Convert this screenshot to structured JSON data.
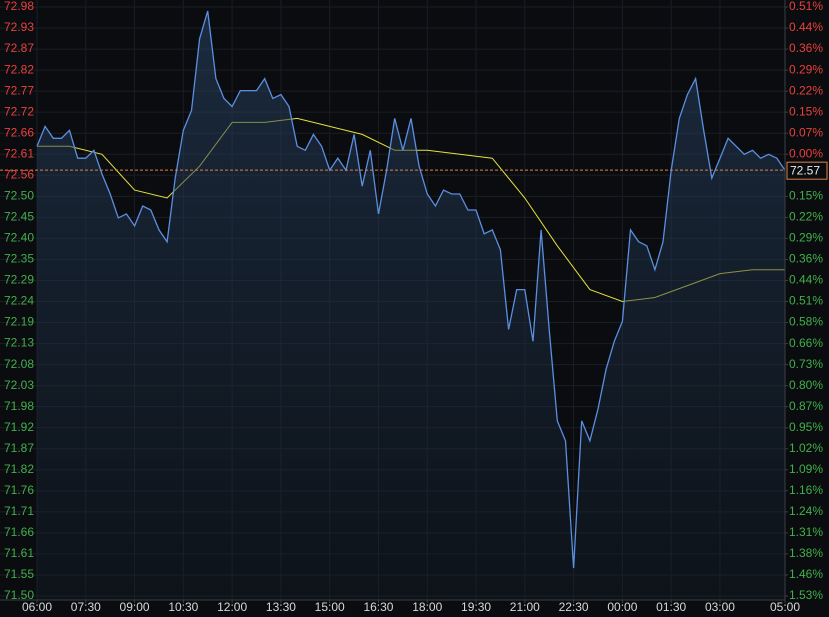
{
  "chart_data": {
    "type": "line",
    "xlim": [
      0,
      23
    ],
    "xticks": [
      {
        "value": 0,
        "label": "06:00"
      },
      {
        "value": 1.5,
        "label": "07:30"
      },
      {
        "value": 3,
        "label": "09:00"
      },
      {
        "value": 4.5,
        "label": "10:30"
      },
      {
        "value": 6,
        "label": "12:00"
      },
      {
        "value": 7.5,
        "label": "13:30"
      },
      {
        "value": 9,
        "label": "15:00"
      },
      {
        "value": 10.5,
        "label": "16:30"
      },
      {
        "value": 12,
        "label": "18:00"
      },
      {
        "value": 13.5,
        "label": "19:30"
      },
      {
        "value": 15,
        "label": "21:00"
      },
      {
        "value": 16.5,
        "label": "22:30"
      },
      {
        "value": 18,
        "label": "00:00"
      },
      {
        "value": 19.5,
        "label": "01:30"
      },
      {
        "value": 21,
        "label": "03:00"
      },
      {
        "value": 23,
        "label": "05:00"
      }
    ],
    "ylim": [
      71.5,
      72.98
    ],
    "yticks": [
      72.98,
      {
        "value": 72.9271,
        "label": "72.93"
      },
      {
        "value": 72.8743,
        "label": "72.87"
      },
      {
        "value": 72.8214,
        "label": "72.82"
      },
      {
        "value": 72.7686,
        "label": "72.77"
      },
      {
        "value": 72.7157,
        "label": "72.72"
      },
      {
        "value": 72.6629,
        "label": "72.66"
      },
      72.61,
      {
        "value": 72.5571,
        "label": "72.56"
      },
      {
        "value": 72.5043,
        "label": "72.50"
      },
      {
        "value": 72.4514,
        "label": "72.45"
      },
      {
        "value": 72.3986,
        "label": "72.40"
      },
      {
        "value": 72.3457,
        "label": "72.35"
      },
      {
        "value": 72.2929,
        "label": "72.29"
      },
      72.24,
      {
        "value": 72.1871,
        "label": "72.19"
      },
      {
        "value": 72.1343,
        "label": "72.13"
      },
      {
        "value": 72.0814,
        "label": "72.08"
      },
      {
        "value": 72.0286,
        "label": "72.03"
      },
      {
        "value": 71.9757,
        "label": "71.98"
      },
      {
        "value": 71.9229,
        "label": "71.92"
      },
      71.87,
      {
        "value": 71.8171,
        "label": "71.82"
      },
      {
        "value": 71.7643,
        "label": "71.76"
      },
      {
        "value": 71.7114,
        "label": "71.71"
      },
      {
        "value": 71.6586,
        "label": "71.66"
      },
      {
        "value": 71.6057,
        "label": "71.61"
      },
      {
        "value": 71.5529,
        "label": "71.55"
      },
      {
        "value": 71.5,
        "label": "71.50"
      }
    ],
    "ytick_colors": [
      "#e8413c",
      "#e8413c",
      "#e8413c",
      "#e8413c",
      "#e8413c",
      "#e8413c",
      "#e8413c",
      "#e8413c",
      "#e8413c",
      "#41b04a",
      "#41b04a",
      "#41b04a",
      "#41b04a",
      "#41b04a",
      "#41b04a",
      "#41b04a",
      "#41b04a",
      "#41b04a",
      "#41b04a",
      "#41b04a",
      "#41b04a",
      "#41b04a",
      "#41b04a",
      "#41b04a",
      "#41b04a",
      "#41b04a",
      "#41b04a",
      "#41b04a",
      "#41b04a"
    ],
    "y2lim": [
      -1.5287,
      0.5096
    ],
    "y2ticks": [
      {
        "value": 0.5096,
        "label": "0.51%"
      },
      {
        "value": 0.4368,
        "label": "0.44%"
      },
      {
        "value": 0.364,
        "label": "0.36%"
      },
      {
        "value": 0.2912,
        "label": "0.29%"
      },
      {
        "value": 0.2184,
        "label": "0.22%"
      },
      {
        "value": 0.1456,
        "label": "0.15%"
      },
      {
        "value": 0.0728,
        "label": "0.07%"
      },
      {
        "value": 0,
        "label": "0.00%"
      },
      {
        "value": -0.1456,
        "label": "0.15%"
      },
      {
        "value": -0.2184,
        "label": "0.22%"
      },
      {
        "value": -0.2912,
        "label": "0.29%"
      },
      {
        "value": -0.364,
        "label": "0.36%"
      },
      {
        "value": -0.4368,
        "label": "0.44%"
      },
      {
        "value": -0.5096,
        "label": "0.51%"
      },
      {
        "value": -0.5824,
        "label": "0.58%"
      },
      {
        "value": -0.6552,
        "label": "0.66%"
      },
      {
        "value": -0.728,
        "label": "0.73%"
      },
      {
        "value": -0.8008,
        "label": "0.80%"
      },
      {
        "value": -0.8736,
        "label": "0.87%"
      },
      {
        "value": -0.9464,
        "label": "0.95%"
      },
      {
        "value": -1.0192,
        "label": "1.02%"
      },
      {
        "value": -1.0919,
        "label": "1.09%"
      },
      {
        "value": -1.1647,
        "label": "1.16%"
      },
      {
        "value": -1.2375,
        "label": "1.24%"
      },
      {
        "value": -1.3103,
        "label": "1.31%"
      },
      {
        "value": -1.3831,
        "label": "1.38%"
      },
      {
        "value": -1.4559,
        "label": "1.46%"
      },
      {
        "value": -1.5287,
        "label": "1.53%"
      }
    ],
    "up_color": "#e8413c",
    "down_color": "#41b04a",
    "grid": true,
    "reference": {
      "value": 72.57,
      "color": "#d9834f"
    },
    "series": [
      {
        "color": "#5b8fe0",
        "fill": true,
        "x": [
          0,
          0.25,
          0.5,
          0.75,
          1,
          1.25,
          1.5,
          1.75,
          2,
          2.25,
          2.5,
          2.75,
          3,
          3.25,
          3.5,
          3.75,
          4,
          4.25,
          4.5,
          4.75,
          5,
          5.25,
          5.5,
          5.75,
          6,
          6.25,
          6.5,
          6.75,
          7,
          7.25,
          7.5,
          7.75,
          8,
          8.25,
          8.5,
          8.75,
          9,
          9.25,
          9.5,
          9.75,
          10,
          10.25,
          10.5,
          10.75,
          11,
          11.25,
          11.5,
          11.75,
          12,
          12.25,
          12.5,
          12.75,
          13,
          13.25,
          13.5,
          13.75,
          14,
          14.25,
          14.5,
          14.75,
          15,
          15.25,
          15.5,
          15.75,
          16,
          16.25,
          16.5,
          16.75,
          17,
          17.25,
          17.5,
          17.75,
          18,
          18.25,
          18.5,
          18.75,
          19,
          19.25,
          19.5,
          19.75,
          20,
          20.25,
          20.5,
          20.75,
          21,
          21.25,
          21.5,
          21.75,
          22,
          22.25,
          22.5,
          22.75,
          23
        ],
        "values": [
          72.63,
          72.68,
          72.65,
          72.65,
          72.67,
          72.6,
          72.6,
          72.62,
          72.56,
          72.51,
          72.45,
          72.46,
          72.43,
          72.48,
          72.47,
          72.42,
          72.39,
          72.55,
          72.67,
          72.72,
          72.9,
          72.97,
          72.8,
          72.75,
          72.73,
          72.77,
          72.77,
          72.77,
          72.8,
          72.75,
          72.76,
          72.73,
          72.63,
          72.62,
          72.66,
          72.63,
          72.57,
          72.6,
          72.57,
          72.66,
          72.53,
          72.62,
          72.46,
          72.57,
          72.7,
          72.62,
          72.7,
          72.58,
          72.51,
          72.48,
          72.52,
          72.51,
          72.51,
          72.47,
          72.47,
          72.41,
          72.42,
          72.37,
          72.17,
          72.27,
          72.27,
          72.14,
          72.42,
          72.17,
          71.94,
          71.89,
          71.57,
          71.94,
          71.89,
          71.97,
          72.07,
          72.14,
          72.19,
          72.42,
          72.39,
          72.38,
          72.32,
          72.39,
          72.57,
          72.7,
          72.76,
          72.8,
          72.67,
          72.55,
          72.6,
          72.65,
          72.63,
          72.61,
          72.62,
          72.6,
          72.61,
          72.6,
          72.57
        ]
      },
      {
        "color": "#e6e23c",
        "fill": false,
        "x": [
          0,
          1,
          2,
          3,
          4,
          5,
          6,
          7,
          8,
          9,
          10,
          11,
          12,
          13,
          14,
          15,
          16,
          17,
          18,
          19,
          20,
          21,
          22,
          23
        ],
        "values": [
          72.63,
          72.63,
          72.61,
          72.52,
          72.5,
          72.58,
          72.69,
          72.69,
          72.7,
          72.68,
          72.66,
          72.62,
          72.62,
          72.61,
          72.6,
          72.5,
          72.38,
          72.27,
          72.24,
          72.25,
          72.28,
          72.31,
          72.32,
          72.32
        ]
      }
    ]
  }
}
